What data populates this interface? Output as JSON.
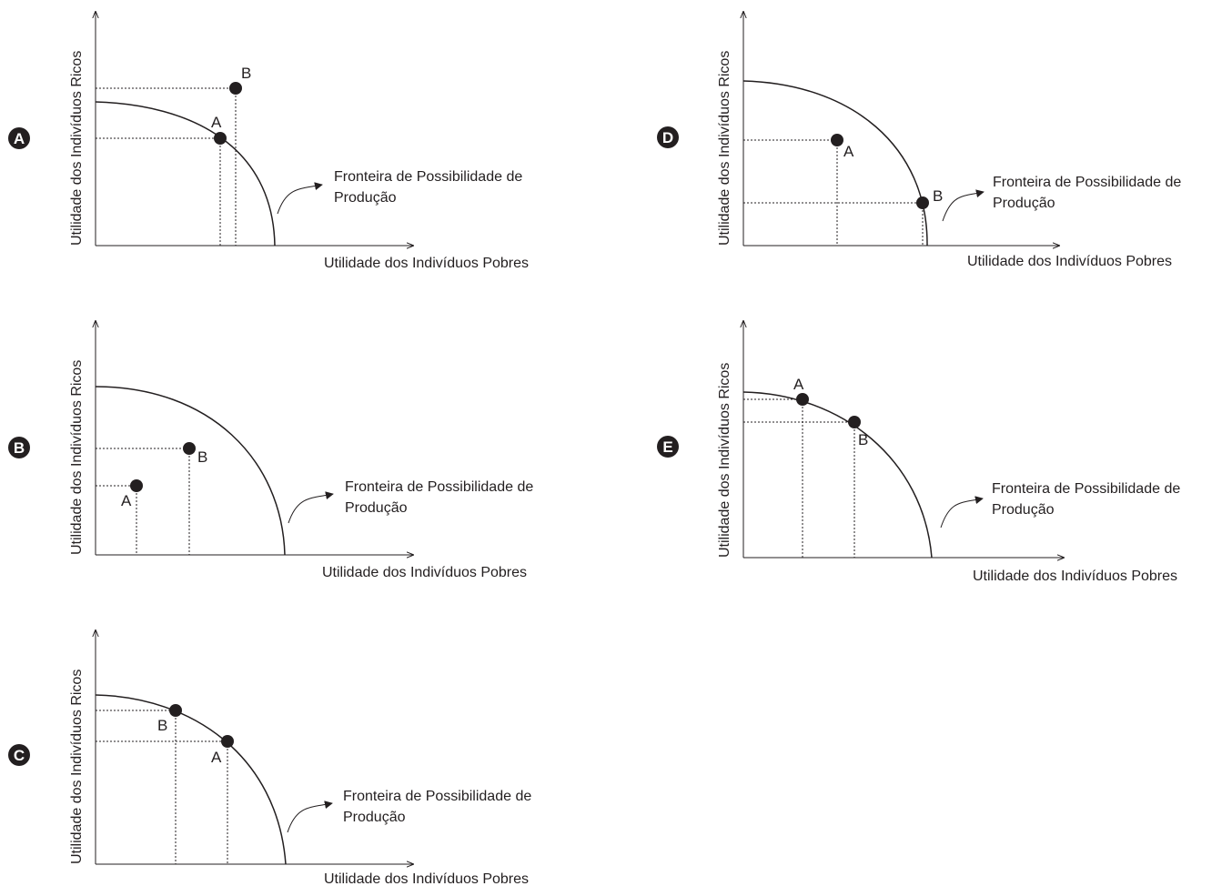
{
  "axis_y_label": "Utilidade dos Indivíduos Ricos",
  "axis_x_label": "Utilidade dos Indivíduos Pobres",
  "frontier_label_line1": "Fronteira de Possibilidade de",
  "frontier_label_line2": "Produção",
  "colors": {
    "ink": "#231f20",
    "background": "#ffffff"
  },
  "panels": [
    {
      "id": "A",
      "points": [
        {
          "label": "A"
        },
        {
          "label": "B"
        }
      ]
    },
    {
      "id": "B",
      "points": [
        {
          "label": "A"
        },
        {
          "label": "B"
        }
      ]
    },
    {
      "id": "C",
      "points": [
        {
          "label": "A"
        },
        {
          "label": "B"
        }
      ]
    },
    {
      "id": "D",
      "points": [
        {
          "label": "A"
        },
        {
          "label": "B"
        }
      ]
    },
    {
      "id": "E",
      "points": [
        {
          "label": "A"
        },
        {
          "label": "B"
        }
      ]
    }
  ]
}
